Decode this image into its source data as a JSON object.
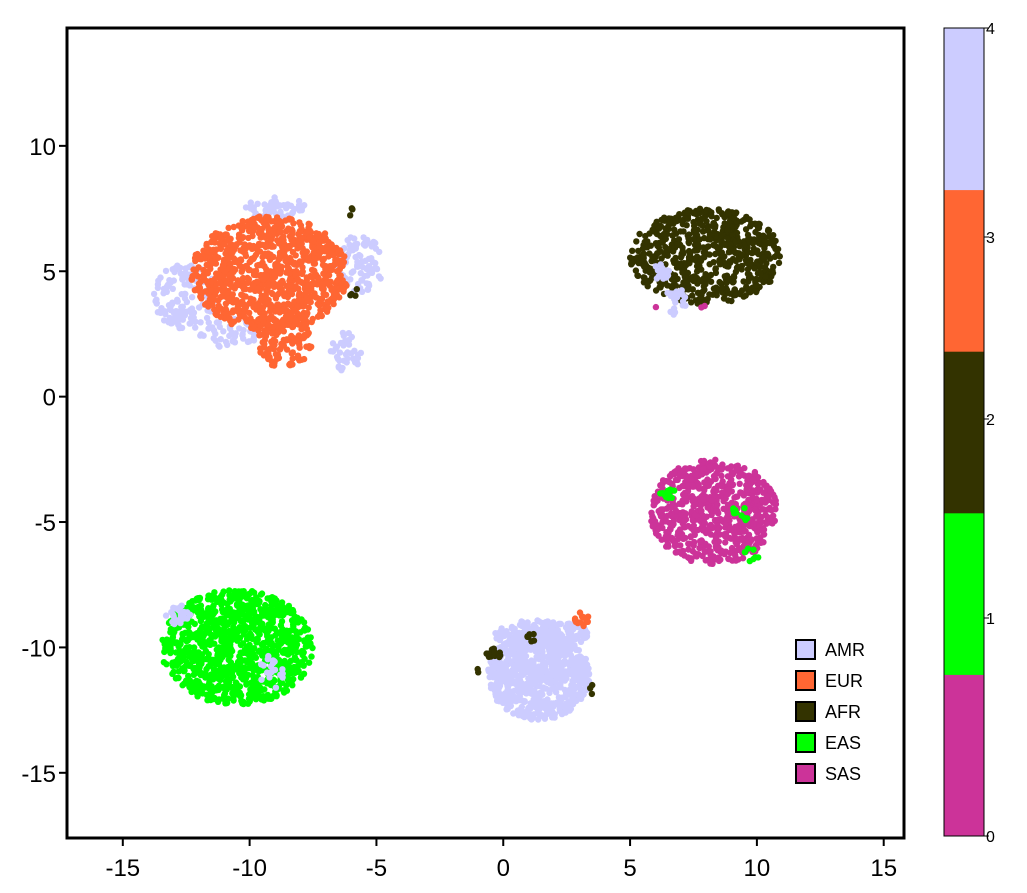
{
  "chart_data": {
    "type": "scatter",
    "title": "",
    "xlabel": "",
    "ylabel": "",
    "xlim": [
      -17.2,
      15.8
    ],
    "ylim": [
      -17.6,
      14.7
    ],
    "xticks": [
      -15,
      -10,
      -5,
      0,
      5,
      10,
      15
    ],
    "yticks": [
      -15,
      -10,
      -5,
      0,
      5,
      10
    ],
    "xtick_labels": [
      "-15",
      "-10",
      "-5",
      "0",
      "5",
      "10",
      "15"
    ],
    "ytick_labels": [
      "-15",
      "-10",
      "-5",
      "0",
      "5",
      "10"
    ],
    "grid": false,
    "legend_position": "bottom-right",
    "series": [
      {
        "name": "AMR",
        "color": "#ccccff",
        "value": 4
      },
      {
        "name": "EUR",
        "color": "#ff6633",
        "value": 3
      },
      {
        "name": "AFR",
        "color": "#333300",
        "value": 2
      },
      {
        "name": "EAS",
        "color": "#00ff00",
        "value": 1
      },
      {
        "name": "SAS",
        "color": "#cc3399",
        "value": 0
      }
    ],
    "colorbar": {
      "ticks": [
        "0",
        "1",
        "2",
        "3",
        "4"
      ],
      "segments": [
        "#cc3399",
        "#00ff00",
        "#333300",
        "#ff6633",
        "#ccccff"
      ]
    },
    "clusters": [
      {
        "series": "AMR",
        "cx": -12.5,
        "cy": 4.0,
        "rx": 1.3,
        "ry": 1.3,
        "n": 130
      },
      {
        "series": "AMR",
        "cx": -9.0,
        "cy": 7.5,
        "rx": 1.2,
        "ry": 0.5,
        "n": 60
      },
      {
        "series": "AMR",
        "cx": -5.6,
        "cy": 5.3,
        "rx": 0.9,
        "ry": 1.2,
        "n": 80
      },
      {
        "series": "AMR",
        "cx": -6.2,
        "cy": 1.8,
        "rx": 0.6,
        "ry": 0.8,
        "n": 40
      },
      {
        "series": "AMR",
        "cx": -10.8,
        "cy": 2.6,
        "rx": 1.2,
        "ry": 0.7,
        "n": 50
      },
      {
        "series": "EUR",
        "cx": -9.2,
        "cy": 4.9,
        "rx": 3.1,
        "ry": 2.3,
        "n": 950
      },
      {
        "series": "EUR",
        "cx": -8.6,
        "cy": 2.3,
        "rx": 1.1,
        "ry": 1.2,
        "n": 130
      },
      {
        "series": "AFR",
        "cx": -6.0,
        "cy": 7.4,
        "rx": 0.1,
        "ry": 0.2,
        "n": 3
      },
      {
        "series": "AFR",
        "cx": -5.9,
        "cy": 4.2,
        "rx": 0.2,
        "ry": 0.2,
        "n": 4
      },
      {
        "series": "AFR",
        "cx": 8.0,
        "cy": 5.6,
        "rx": 3.0,
        "ry": 1.9,
        "n": 650
      },
      {
        "series": "AMR",
        "cx": 6.2,
        "cy": 5.0,
        "rx": 0.4,
        "ry": 0.4,
        "n": 20
      },
      {
        "series": "AMR",
        "cx": 6.8,
        "cy": 3.8,
        "rx": 0.4,
        "ry": 0.6,
        "n": 20
      },
      {
        "series": "SAS",
        "cx": 7.8,
        "cy": 3.6,
        "rx": 0.2,
        "ry": 0.2,
        "n": 2
      },
      {
        "series": "SAS",
        "cx": 6.0,
        "cy": 3.5,
        "rx": 0.1,
        "ry": 0.1,
        "n": 1
      },
      {
        "series": "SAS",
        "cx": 8.3,
        "cy": -4.6,
        "rx": 2.5,
        "ry": 2.1,
        "n": 700
      },
      {
        "series": "EAS",
        "cx": 6.5,
        "cy": -3.9,
        "rx": 0.4,
        "ry": 0.2,
        "n": 14
      },
      {
        "series": "EAS",
        "cx": 9.3,
        "cy": -4.7,
        "rx": 0.4,
        "ry": 0.3,
        "n": 10
      },
      {
        "series": "EAS",
        "cx": 9.8,
        "cy": -6.3,
        "rx": 0.3,
        "ry": 0.3,
        "n": 7
      },
      {
        "series": "EAS",
        "cx": -10.5,
        "cy": -10.0,
        "rx": 3.0,
        "ry": 2.3,
        "n": 1000
      },
      {
        "series": "AMR",
        "cx": -12.8,
        "cy": -8.7,
        "rx": 0.5,
        "ry": 0.4,
        "n": 25
      },
      {
        "series": "AMR",
        "cx": -9.2,
        "cy": -11.0,
        "rx": 0.6,
        "ry": 0.7,
        "n": 20
      },
      {
        "series": "AMR",
        "cx": 1.4,
        "cy": -11.1,
        "rx": 2.0,
        "ry": 1.8,
        "n": 750
      },
      {
        "series": "AMR",
        "cx": 1.5,
        "cy": -9.5,
        "rx": 1.9,
        "ry": 0.6,
        "n": 200
      },
      {
        "series": "EUR",
        "cx": 3.1,
        "cy": -8.9,
        "rx": 0.3,
        "ry": 0.3,
        "n": 14
      },
      {
        "series": "AFR",
        "cx": -0.4,
        "cy": -10.3,
        "rx": 0.3,
        "ry": 0.3,
        "n": 16
      },
      {
        "series": "AFR",
        "cx": 1.1,
        "cy": -9.6,
        "rx": 0.2,
        "ry": 0.2,
        "n": 8
      },
      {
        "series": "AFR",
        "cx": 3.5,
        "cy": -11.7,
        "rx": 0.1,
        "ry": 0.2,
        "n": 3
      },
      {
        "series": "AFR",
        "cx": -1.0,
        "cy": -10.9,
        "rx": 0.1,
        "ry": 0.1,
        "n": 2
      }
    ]
  }
}
